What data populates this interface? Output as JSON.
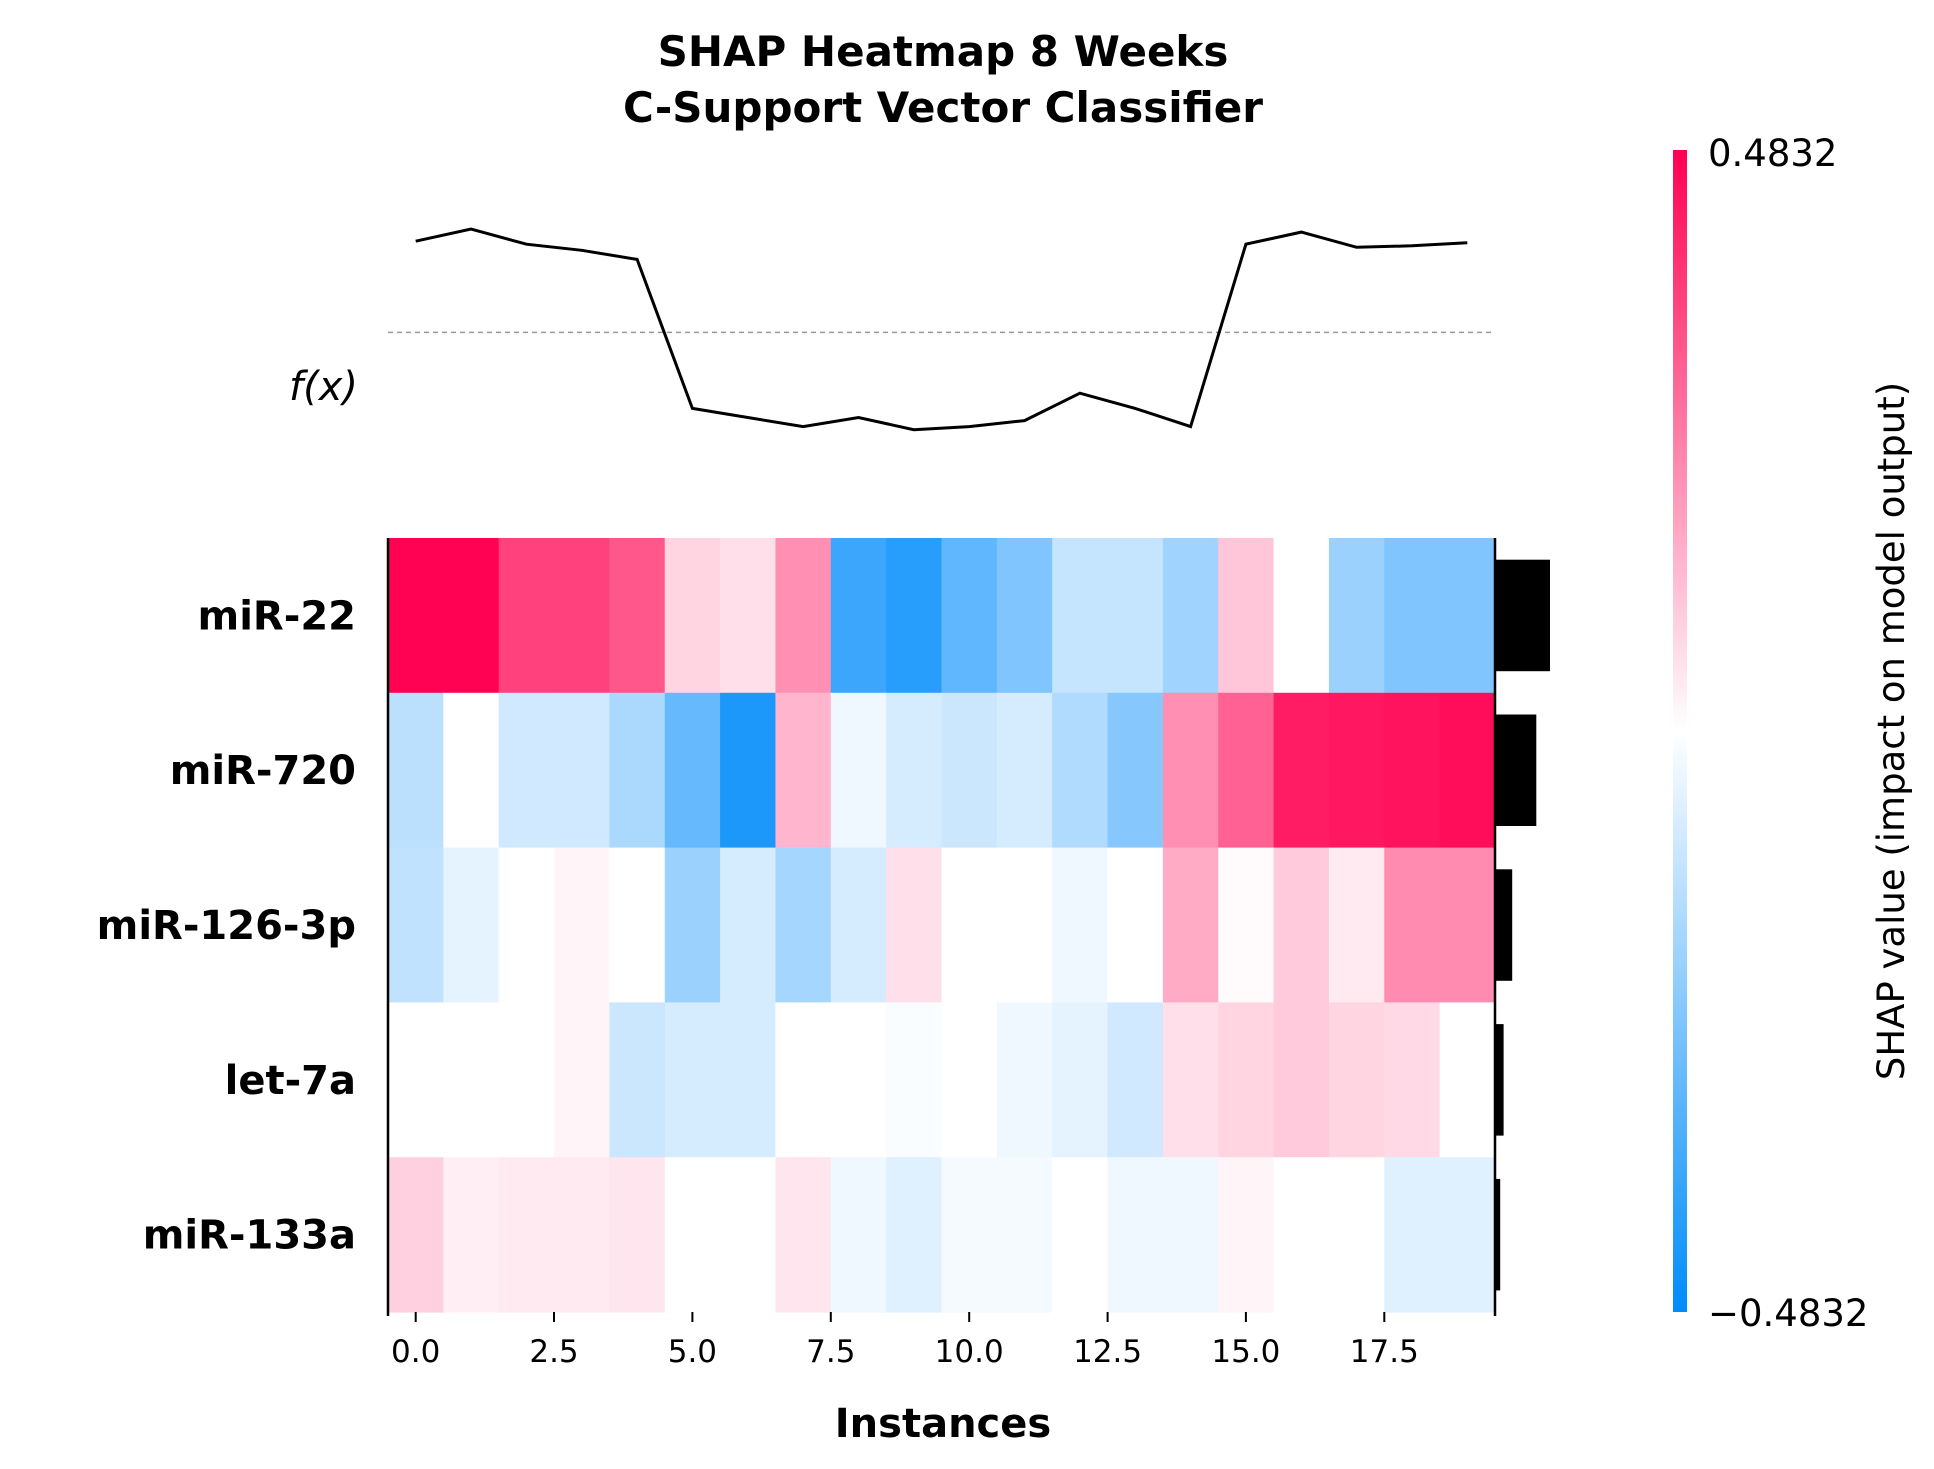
{
  "chart_data": {
    "type": "heatmap",
    "title_line1": "SHAP Heatmap 8 Weeks",
    "title_line2": "C-Support Vector Classifier",
    "xlabel": "Instances",
    "fx_label": "f(x)",
    "colorbar_label": "SHAP value (impact on model output)",
    "colorbar_max_label": "0.4832",
    "colorbar_min_label": "−0.4832",
    "vmin": -0.4832,
    "vmax": 0.4832,
    "x_ticks": [
      "0.0",
      "2.5",
      "5.0",
      "7.5",
      "10.0",
      "12.5",
      "15.0",
      "17.5"
    ],
    "x_tick_values": [
      0,
      2.5,
      5,
      7.5,
      10,
      12.5,
      15,
      17.5
    ],
    "n_instances": 20,
    "colors": {
      "positive": "#ff0052",
      "negative": "#008bfb",
      "line": "#000000"
    },
    "features": [
      {
        "name": "miR-22",
        "values": [
          0.48,
          0.48,
          0.36,
          0.36,
          0.32,
          0.08,
          0.06,
          0.21,
          -0.37,
          -0.41,
          -0.3,
          -0.24,
          -0.11,
          -0.11,
          -0.18,
          0.11,
          0.0,
          -0.19,
          -0.24,
          -0.24
        ]
      },
      {
        "name": "miR-720",
        "values": [
          -0.13,
          0.0,
          -0.09,
          -0.09,
          -0.16,
          -0.29,
          -0.43,
          0.14,
          -0.03,
          -0.08,
          -0.1,
          -0.08,
          -0.15,
          -0.23,
          0.21,
          0.3,
          0.43,
          0.44,
          0.45,
          0.46
        ]
      },
      {
        "name": "miR-126-3p",
        "values": [
          -0.12,
          -0.05,
          0.0,
          0.02,
          0.0,
          -0.19,
          -0.08,
          -0.17,
          -0.08,
          0.06,
          0.0,
          0.0,
          -0.03,
          0.0,
          0.16,
          0.01,
          0.1,
          0.04,
          0.22,
          0.22
        ]
      },
      {
        "name": "let-7a",
        "values": [
          0.0,
          0.0,
          0.0,
          0.02,
          -0.1,
          -0.08,
          -0.08,
          0.0,
          0.0,
          -0.01,
          0.0,
          -0.03,
          -0.05,
          -0.09,
          0.06,
          0.08,
          0.1,
          0.08,
          0.07,
          0.0
        ]
      },
      {
        "name": "miR-133a",
        "values": [
          0.09,
          0.03,
          0.04,
          0.04,
          0.05,
          0.0,
          0.0,
          0.05,
          -0.03,
          -0.06,
          -0.02,
          -0.02,
          0.0,
          -0.03,
          -0.03,
          0.02,
          0.0,
          0.0,
          -0.06,
          -0.06
        ]
      }
    ],
    "importance": [
      0.32,
      0.24,
      0.1,
      0.05,
      0.03
    ],
    "fx_values": [
      0.95,
      0.99,
      0.94,
      0.92,
      0.89,
      0.4,
      0.37,
      0.34,
      0.37,
      0.33,
      0.34,
      0.36,
      0.45,
      0.4,
      0.34,
      0.94,
      0.98,
      0.93,
      0.935,
      0.945
    ],
    "fx_baseline": 0.65,
    "fx_range": [
      0.0,
      1.0
    ]
  }
}
